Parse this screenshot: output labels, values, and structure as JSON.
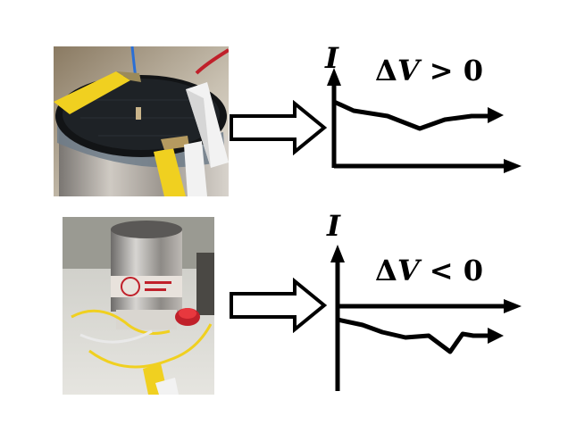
{
  "panels": [
    {
      "id": "top",
      "y_axis_label": "I",
      "condition": "ΔV > 0",
      "condition_symbol": "Δ",
      "condition_var": "V",
      "condition_rest": " > 0",
      "current_sign": "positive"
    },
    {
      "id": "bottom",
      "y_axis_label": "I",
      "condition": "ΔV < 0",
      "condition_symbol": "Δ",
      "condition_var": "V",
      "condition_rest": " < 0",
      "current_sign": "negative"
    }
  ],
  "colors": {
    "ink": "#000000",
    "clip_yellow": "#f0d020",
    "clip_white": "#f2f2f2",
    "wire_red": "#c0202a",
    "wire_blue": "#2a6fd6",
    "metal": "#b9b9bb"
  },
  "icons": [
    "hollow-right-arrow-icon",
    "hollow-right-arrow-icon"
  ]
}
